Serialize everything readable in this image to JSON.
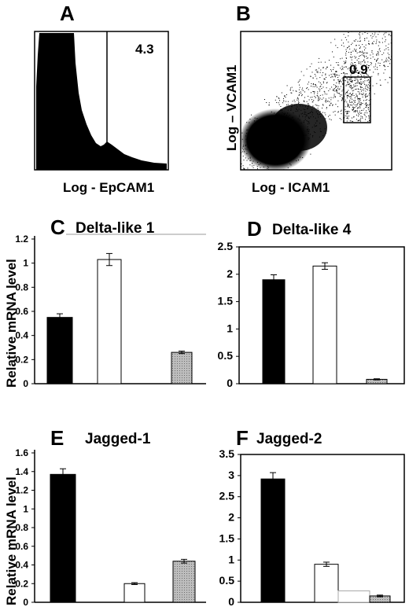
{
  "panel_a": {
    "letter": "A",
    "value": "4.3",
    "xlabel": "Log - EpCAM1"
  },
  "panel_b": {
    "letter": "B",
    "value": "0.9",
    "xlabel": "Log - ICAM1",
    "ylabel": "Log – VCAM1"
  },
  "shared_ylabel": "Relative mRNA level",
  "colors": {
    "black": "#000000",
    "white": "#ffffff",
    "hatched": "#b8b8b8"
  },
  "chart_data": [
    {
      "id": "C",
      "type": "bar",
      "title": "Delta-like 1",
      "ylim": [
        0,
        1.2
      ],
      "yticks": [
        "0",
        "0.2",
        "0.4",
        "0.6",
        "0.8",
        "1",
        "1.2"
      ],
      "bars": [
        {
          "value": 0.55,
          "error": 0.03,
          "fill": "black"
        },
        {
          "value": 1.03,
          "error": 0.05,
          "fill": "white"
        },
        {
          "value": 0.26,
          "error": 0.01,
          "fill": "hatched"
        }
      ]
    },
    {
      "id": "D",
      "type": "bar",
      "title": "Delta-like 4",
      "ylim": [
        0,
        2.5
      ],
      "yticks": [
        "0",
        "0.5",
        "1",
        "1.5",
        "2",
        "2.5"
      ],
      "bars": [
        {
          "value": 1.9,
          "error": 0.09,
          "fill": "black"
        },
        {
          "value": 2.15,
          "error": 0.06,
          "fill": "white"
        },
        {
          "value": 0.08,
          "error": 0.01,
          "fill": "hatched"
        }
      ]
    },
    {
      "id": "E",
      "type": "bar",
      "title": "Jagged-1",
      "ylim": [
        0,
        1.6
      ],
      "yticks": [
        "0",
        "0.2",
        "0.4",
        "0.6",
        "0.8",
        "1",
        "1.2",
        "1.4",
        "1.6"
      ],
      "bars": [
        {
          "value": 1.37,
          "error": 0.06,
          "fill": "black"
        },
        {
          "value": 0.2,
          "error": 0.01,
          "fill": "white"
        },
        {
          "value": 0.44,
          "error": 0.02,
          "fill": "hatched"
        }
      ]
    },
    {
      "id": "F",
      "type": "bar",
      "title": "Jagged-2",
      "ylim": [
        0,
        3.5
      ],
      "yticks": [
        "0",
        "0.5",
        "1",
        "1.5",
        "2",
        "2.5",
        "3",
        "3.5"
      ],
      "bars": [
        {
          "value": 2.92,
          "error": 0.15,
          "fill": "black"
        },
        {
          "value": 0.9,
          "error": 0.05,
          "fill": "white"
        },
        {
          "value": 0.27,
          "error": 0,
          "fill": "white"
        },
        {
          "value": 0.15,
          "error": 0.02,
          "fill": "hatched"
        }
      ]
    }
  ]
}
